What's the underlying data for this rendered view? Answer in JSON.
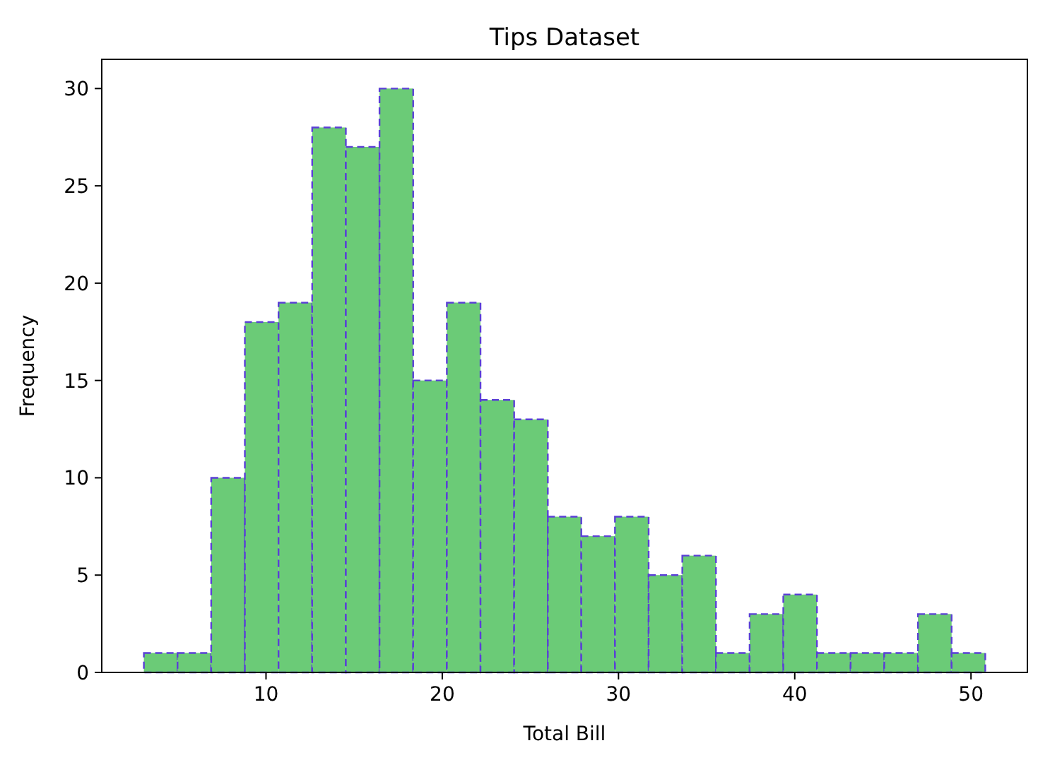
{
  "chart_data": {
    "type": "histogram",
    "title": "Tips Dataset",
    "xlabel": "Total Bill",
    "ylabel": "Frequency",
    "bins": [
      3.07,
      4.98,
      6.89,
      8.8,
      10.71,
      12.62,
      14.53,
      16.44,
      18.35,
      20.26,
      22.17,
      24.08,
      25.99,
      27.89,
      29.8,
      31.71,
      33.62,
      35.53,
      37.44,
      39.35,
      41.26,
      43.17,
      45.08,
      46.99,
      48.9,
      50.81
    ],
    "values": [
      1,
      1,
      10,
      18,
      19,
      28,
      27,
      30,
      15,
      19,
      14,
      13,
      8,
      7,
      8,
      5,
      6,
      1,
      3,
      4,
      1,
      1,
      1,
      3,
      1
    ],
    "color": "#6bcb77",
    "line_style": "dashed",
    "xlim": [
      0.68,
      53.2
    ],
    "xticks": [
      10,
      20,
      30,
      40,
      50
    ],
    "ylim": [
      0,
      31.5
    ],
    "yticks": [
      0,
      5,
      10,
      15,
      20,
      25,
      30
    ],
    "grid": false
  }
}
